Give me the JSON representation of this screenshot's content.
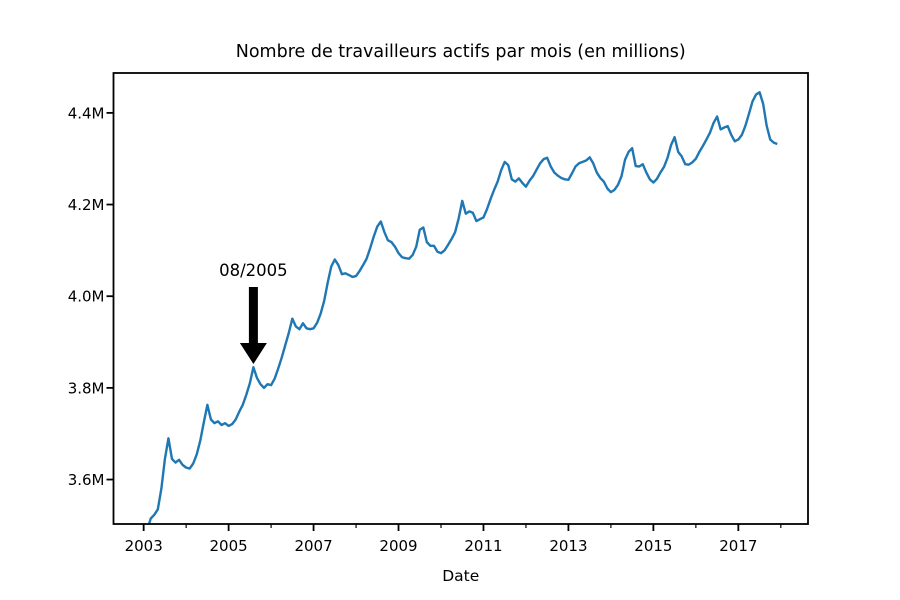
{
  "figure": {
    "background": "#ffffff",
    "text_color": "#000000",
    "spine_color": "#000000"
  },
  "chart_data": {
    "type": "line",
    "title": "Nombre de travailleurs actifs par mois (en millions)",
    "xlabel": "Date",
    "ylabel": "",
    "legend": null,
    "grid": false,
    "line_color": "#1f77b4",
    "xlim": [
      2002.29,
      2018.64
    ],
    "ylim": [
      3.503,
      4.487
    ],
    "x_ticks": [
      2003,
      2005,
      2007,
      2009,
      2011,
      2013,
      2015,
      2017
    ],
    "x_ticklabels": [
      "2003",
      "2005",
      "2007",
      "2009",
      "2011",
      "2013",
      "2015",
      "2017"
    ],
    "x_minor_ticks": [
      2004,
      2006,
      2008,
      2010,
      2012,
      2014,
      2016,
      2018
    ],
    "y_ticks": [
      3.6,
      3.8,
      4.0,
      4.2,
      4.4
    ],
    "y_ticklabels": [
      "3.6M",
      "3.8M",
      "4.0M",
      "4.2M",
      "4.4M"
    ],
    "series": [
      {
        "name": "travailleurs-actifs",
        "start_year": 2003,
        "frequency": "monthly",
        "unit": "millions",
        "values": [
          3.468,
          3.49,
          3.515,
          3.523,
          3.535,
          3.58,
          3.645,
          3.69,
          3.645,
          3.637,
          3.643,
          3.632,
          3.626,
          3.624,
          3.635,
          3.655,
          3.685,
          3.725,
          3.763,
          3.731,
          3.723,
          3.727,
          3.719,
          3.723,
          3.717,
          3.721,
          3.731,
          3.748,
          3.763,
          3.785,
          3.81,
          3.845,
          3.822,
          3.808,
          3.8,
          3.808,
          3.806,
          3.82,
          3.842,
          3.866,
          3.893,
          3.92,
          3.951,
          3.934,
          3.928,
          3.941,
          3.93,
          3.928,
          3.93,
          3.942,
          3.962,
          3.99,
          4.03,
          4.065,
          4.08,
          4.068,
          4.048,
          4.05,
          4.046,
          4.042,
          4.044,
          4.055,
          4.068,
          4.082,
          4.105,
          4.13,
          4.152,
          4.163,
          4.14,
          4.122,
          4.118,
          4.108,
          4.094,
          4.085,
          4.083,
          4.082,
          4.09,
          4.108,
          4.145,
          4.15,
          4.118,
          4.11,
          4.11,
          4.097,
          4.094,
          4.1,
          4.112,
          4.125,
          4.14,
          4.17,
          4.208,
          4.18,
          4.185,
          4.182,
          4.164,
          4.168,
          4.172,
          4.19,
          4.212,
          4.232,
          4.25,
          4.275,
          4.293,
          4.286,
          4.255,
          4.25,
          4.257,
          4.247,
          4.239,
          4.252,
          4.262,
          4.276,
          4.29,
          4.299,
          4.302,
          4.283,
          4.27,
          4.263,
          4.258,
          4.255,
          4.254,
          4.268,
          4.283,
          4.29,
          4.293,
          4.296,
          4.303,
          4.29,
          4.27,
          4.258,
          4.25,
          4.235,
          4.227,
          4.232,
          4.243,
          4.262,
          4.298,
          4.315,
          4.323,
          4.284,
          4.283,
          4.288,
          4.27,
          4.255,
          4.248,
          4.256,
          4.27,
          4.282,
          4.302,
          4.33,
          4.347,
          4.315,
          4.305,
          4.288,
          4.287,
          4.292,
          4.3,
          4.315,
          4.328,
          4.342,
          4.357,
          4.378,
          4.392,
          4.364,
          4.368,
          4.371,
          4.352,
          4.338,
          4.342,
          4.352,
          4.372,
          4.398,
          4.425,
          4.44,
          4.445,
          4.42,
          4.372,
          4.342,
          4.335,
          4.332
        ]
      }
    ],
    "annotation": {
      "text": "08/2005",
      "x": 2005.583,
      "text_y": 4.057,
      "arrow_tail_y": 4.02,
      "arrow_tip_y": 3.852,
      "color": "#000000"
    }
  }
}
